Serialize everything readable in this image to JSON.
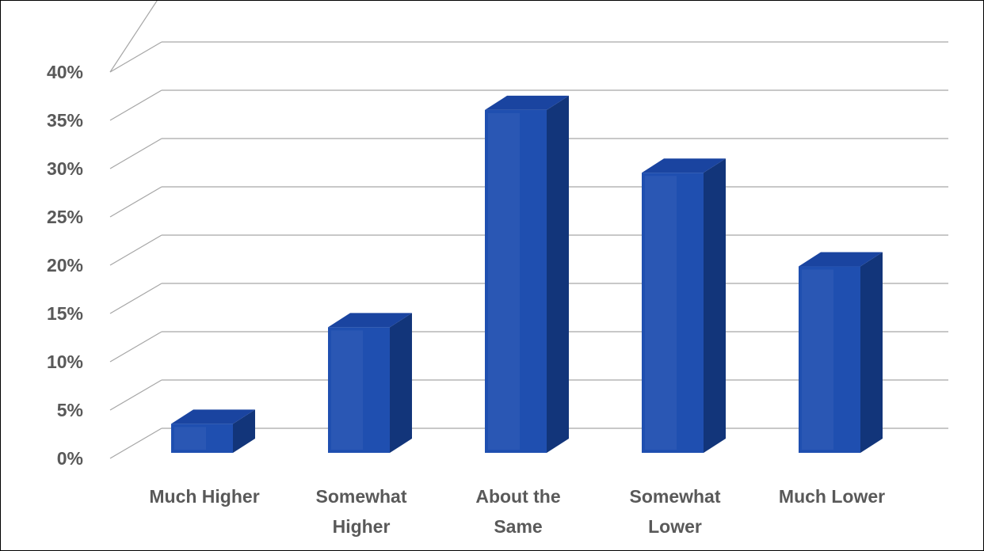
{
  "chart_data": {
    "type": "bar",
    "style": "3d-column",
    "title": "",
    "xlabel": "",
    "ylabel": "",
    "categories": [
      "Much Higher",
      "Somewhat Higher",
      "About the Same",
      "Somewhat Lower",
      "Much Lower"
    ],
    "category_lines": [
      [
        "Much Higher"
      ],
      [
        "Somewhat",
        "Higher"
      ],
      [
        "About the",
        "Same"
      ],
      [
        "Somewhat",
        "Lower"
      ],
      [
        "Much Lower"
      ]
    ],
    "values": [
      3,
      13,
      35.5,
      29,
      19.3
    ],
    "ylim": [
      0,
      40
    ],
    "y_ticks": [
      0,
      5,
      10,
      15,
      20,
      25,
      30,
      35,
      40
    ],
    "y_tick_labels": [
      "0%",
      "5%",
      "10%",
      "15%",
      "20%",
      "25%",
      "30%",
      "35%",
      "40%"
    ],
    "grid": true,
    "legend": "none",
    "colors": {
      "bar_front": "#1F4FB0",
      "bar_side": "#12357A",
      "bar_top": "#1A44A0",
      "gridline": "#A6A6A6",
      "label": "#595959"
    }
  }
}
